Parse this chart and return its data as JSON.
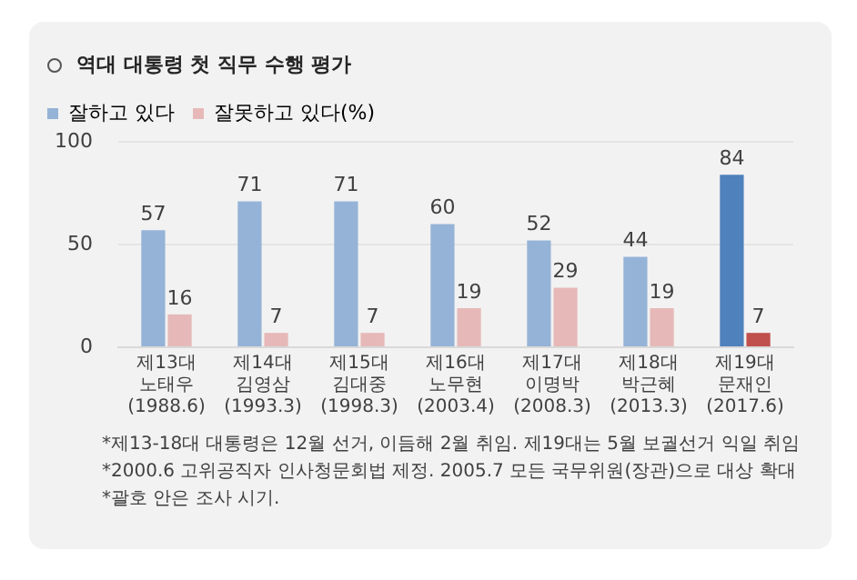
{
  "chart_data": {
    "type": "bar",
    "title": "역대 대통령 첫 직무 수행 평가",
    "categories": [
      "제13대\n노태우\n(1988.6)",
      "제14대\n김영삼\n(1993.3)",
      "제15대\n김대중\n(1998.3)",
      "제16대\n노무현\n(2003.4)",
      "제17대\n이명박\n(2008.3)",
      "제18대\n박근혜\n(2013.3)",
      "제19대\n문재인\n(2017.6)"
    ],
    "series": [
      {
        "name": "잘하고 있다",
        "color": "#95b3d7",
        "colors": [
          "#95b3d7",
          "#95b3d7",
          "#95b3d7",
          "#95b3d7",
          "#95b3d7",
          "#95b3d7",
          "#4f81bd"
        ],
        "values": [
          57,
          71,
          71,
          60,
          52,
          44,
          84
        ]
      },
      {
        "name": "잘못하고 있다(%)",
        "color": "#e6b9b8",
        "colors": [
          "#e6b9b8",
          "#e6b9b8",
          "#e6b9b8",
          "#e6b9b8",
          "#e6b9b8",
          "#e6b9b8",
          "#c0504d"
        ],
        "values": [
          16,
          7,
          7,
          19,
          29,
          19,
          7
        ]
      }
    ],
    "ylim": [
      0,
      100
    ],
    "yticks": [
      0,
      50,
      100
    ],
    "grid": "y",
    "legend": "top left",
    "data_labels": true,
    "annotations": [
      "*제13-18대 대통령은 12월 선거, 이듬해 2월 취임. 제19대는 5월 보궐선거 익일 취임",
      "*2000.6 고위공직자 인사청문회법 제정. 2005.7 모든 국무위원(장관)으로 대상 확대",
      "*괄호 안은 조사 시기."
    ]
  }
}
